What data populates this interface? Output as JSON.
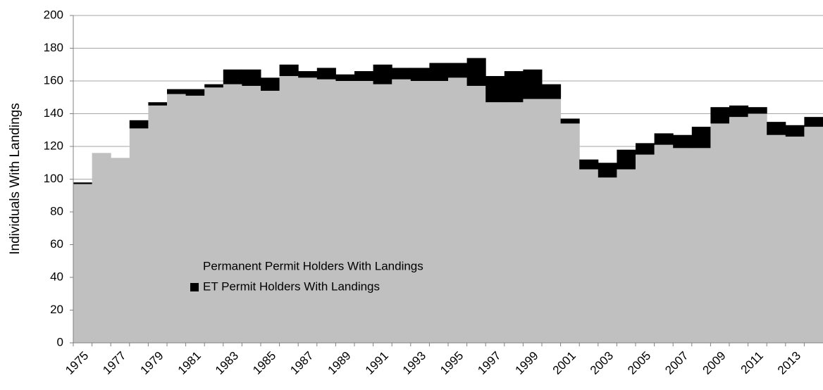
{
  "chart_data": {
    "type": "stacked-bar",
    "y_label": "Individuals With Landings",
    "categories": [
      "1975",
      null,
      "1977",
      null,
      "1979",
      null,
      "1981",
      null,
      "1983",
      null,
      "1985",
      null,
      "1987",
      null,
      "1989",
      null,
      "1991",
      null,
      "1993",
      null,
      "1995",
      null,
      "1997",
      null,
      "1999",
      null,
      "2001",
      null,
      "2003",
      null,
      "2005",
      null,
      "2007",
      null,
      "2009",
      null,
      "2011",
      null,
      "2013",
      null
    ],
    "series": [
      {
        "name": "Permanent Permit Holders With Landings",
        "color": "#c0c0c0",
        "values": [
          97,
          116,
          113,
          131,
          145,
          152,
          151,
          156,
          158,
          157,
          154,
          163,
          162,
          161,
          160,
          160,
          158,
          161,
          160,
          160,
          162,
          157,
          147,
          147,
          149,
          149,
          134,
          106,
          101,
          106,
          115,
          121,
          119,
          119,
          134,
          138,
          140,
          127,
          126,
          132
        ]
      },
      {
        "name": "ET Permit Holders With Landings",
        "color": "#000000",
        "values": [
          1,
          0,
          0,
          5,
          2,
          3,
          4,
          2,
          9,
          10,
          8,
          7,
          4,
          7,
          4,
          6,
          12,
          7,
          8,
          11,
          9,
          17,
          16,
          19,
          18,
          9,
          3,
          6,
          9,
          12,
          7,
          7,
          8,
          13,
          10,
          7,
          4,
          8,
          7,
          6
        ]
      }
    ],
    "ylim": [
      0,
      200
    ],
    "yticks": [
      0,
      20,
      40,
      60,
      80,
      100,
      120,
      140,
      160,
      180,
      200
    ],
    "grid": true
  }
}
